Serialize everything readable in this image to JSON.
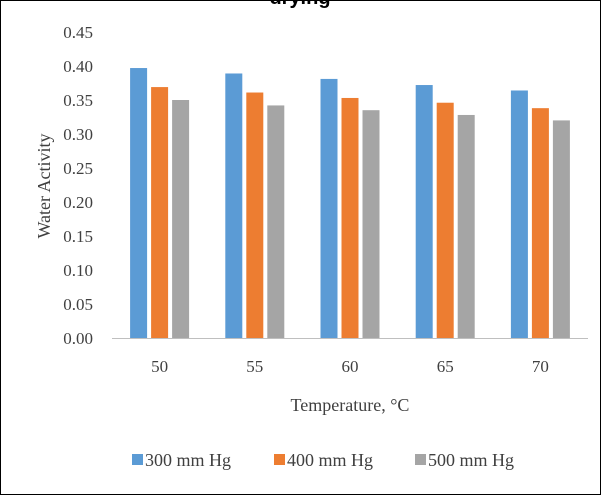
{
  "chart_data": {
    "type": "bar",
    "title": "drying",
    "xlabel": "Temperature, °C",
    "ylabel": "Water Activity",
    "categories": [
      "50",
      "55",
      "60",
      "65",
      "70"
    ],
    "ylim": [
      0,
      0.45
    ],
    "yticks": [
      "0.00",
      "0.05",
      "0.10",
      "0.15",
      "0.20",
      "0.25",
      "0.30",
      "0.35",
      "0.40",
      "0.45"
    ],
    "grid": false,
    "legend_position": "bottom",
    "series": [
      {
        "name": "300 mm Hg",
        "color": "#5b9bd5",
        "values": [
          0.397,
          0.389,
          0.381,
          0.372,
          0.364
        ]
      },
      {
        "name": "400 mm Hg",
        "color": "#ed7d31",
        "values": [
          0.369,
          0.361,
          0.353,
          0.346,
          0.338
        ]
      },
      {
        "name": "500 mm Hg",
        "color": "#a5a5a5",
        "values": [
          0.35,
          0.342,
          0.335,
          0.328,
          0.32
        ]
      }
    ]
  }
}
